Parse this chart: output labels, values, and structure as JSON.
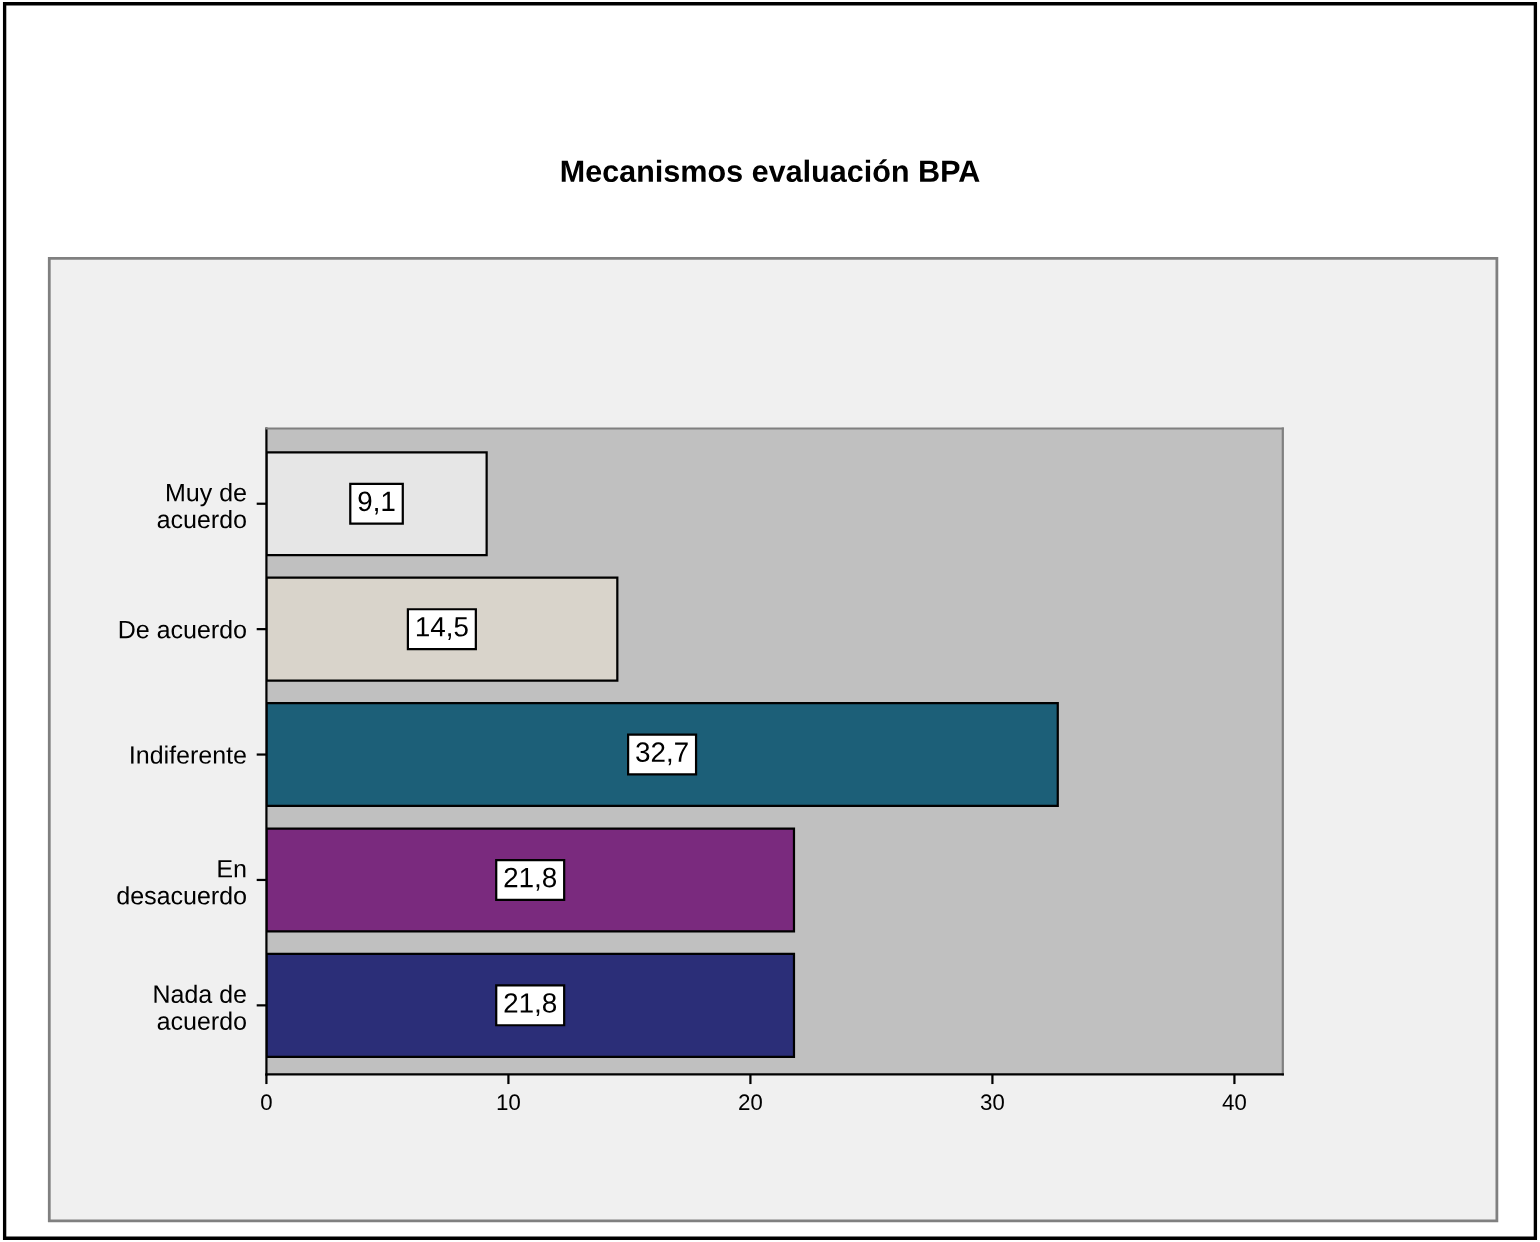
{
  "chart_data": {
    "type": "bar",
    "orientation": "horizontal",
    "title": "Mecanismos evaluación BPA",
    "categories": [
      "Muy de acuerdo",
      "De acuerdo",
      "Indiferente",
      "En desacuerdo",
      "Nada de acuerdo"
    ],
    "values": [
      9.1,
      14.5,
      32.7,
      21.8,
      21.8
    ],
    "value_labels": [
      "9,1",
      "14,5",
      "32,7",
      "21,8",
      "21,8"
    ],
    "colors": [
      "#e6e6e6",
      "#d9d4cb",
      "#1c5f78",
      "#7a2a7e",
      "#2b2e78"
    ],
    "xlim": [
      0,
      42
    ],
    "xticks": [
      0,
      10,
      20,
      30,
      40
    ],
    "grid": false
  }
}
